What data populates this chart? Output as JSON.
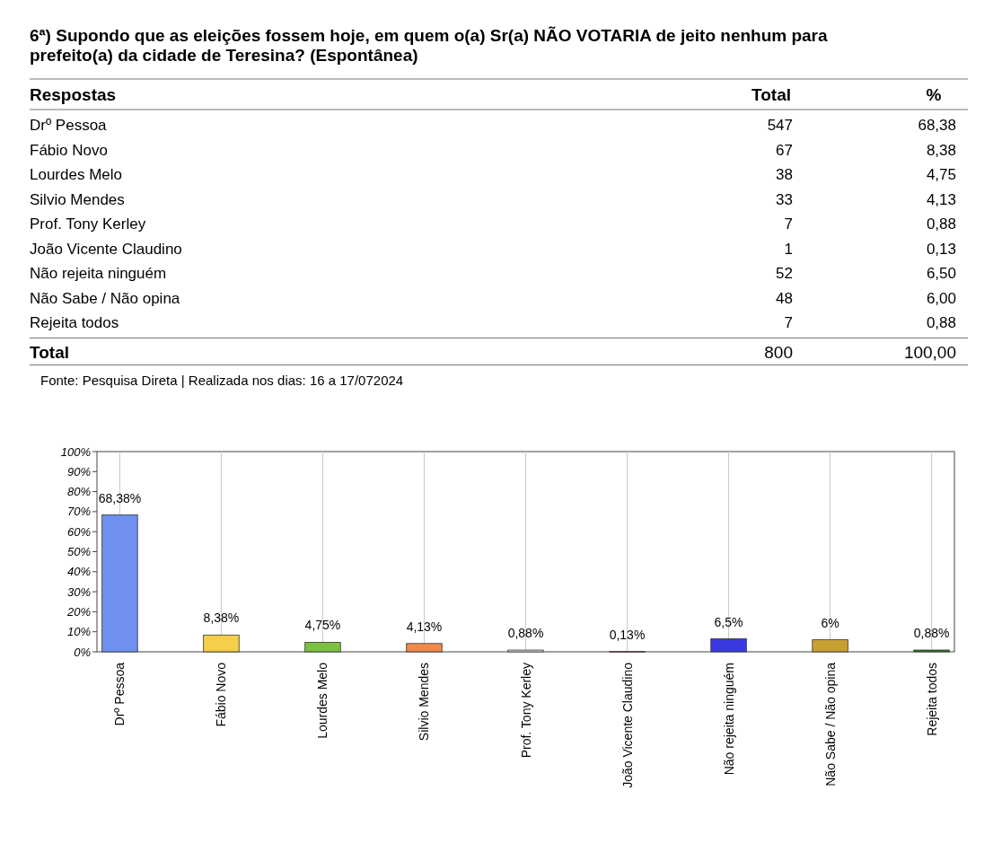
{
  "chart_data": [
    {
      "type": "other",
      "title": "6ª) Supondo que as eleições fossem hoje, em quem o(a) Sr(a) NÃO VOTARIA de jeito nenhum para prefeito(a) da cidade de Teresina? (Espontânea)",
      "xlabel": "Respostas",
      "categories": [
        "Drº Pessoa",
        "Fábio Novo",
        "Lourdes Melo",
        "Silvio Mendes",
        "Prof. Tony Kerley",
        "João Vicente Claudino",
        "Não rejeita ninguém",
        "Não Sabe / Não opina",
        "Rejeita todos",
        "Total"
      ],
      "series": [
        {
          "name": "Total",
          "values": [
            547,
            67,
            38,
            33,
            7,
            1,
            52,
            48,
            7,
            800
          ],
          "value_labels": [
            "547",
            "67",
            "38",
            "33",
            "7",
            "1",
            "52",
            "48",
            "7",
            "800"
          ]
        },
        {
          "name": "%",
          "values": [
            68.38,
            8.38,
            4.75,
            4.13,
            0.88,
            0.13,
            6.5,
            6,
            0.88,
            100
          ],
          "value_labels": [
            "68,38",
            "8,38",
            "4,75",
            "4,13",
            "0,88",
            "0,13",
            "6,50",
            "6,00",
            "0,88",
            "100,00"
          ]
        }
      ],
      "data_labels": true,
      "annotations": [
        "Fonte: Pesquisa Direta | Realizada nos dias: 16 a 17/072024"
      ]
    },
    {
      "type": "bar",
      "categories": [
        "Drº Pessoa",
        "Fábio Novo",
        "Lourdes Melo",
        "Silvio Mendes",
        "Prof. Tony Kerley",
        "João Vicente Claudino",
        "Não rejeita ninguém",
        "Não Sabe / Não opina",
        "Rejeita todos"
      ],
      "values": [
        68.38,
        8.38,
        4.75,
        4.13,
        0.88,
        0.13,
        6.5,
        6,
        0.88
      ],
      "colors": [
        "#7090f0",
        "#f5cf4a",
        "#7cc142",
        "#f08a4b",
        "#dde2ea",
        "#d63a2a",
        "#3a3ae0",
        "#c8a032",
        "#2f7a1f"
      ],
      "value_labels": [
        "68,38%",
        "8,38%",
        "4,75%",
        "4,13%",
        "0,88%",
        "0,13%",
        "6,5%",
        "6%",
        "0,88%"
      ],
      "ylim": [
        0,
        100
      ],
      "yticks": [
        {
          "value": 0,
          "label": "0%"
        },
        {
          "value": 10,
          "label": "10%"
        },
        {
          "value": 20,
          "label": "20%"
        },
        {
          "value": 30,
          "label": "30%"
        },
        {
          "value": 40,
          "label": "40%"
        },
        {
          "value": 50,
          "label": "50%"
        },
        {
          "value": 60,
          "label": "60%"
        },
        {
          "value": 70,
          "label": "70%"
        },
        {
          "value": 80,
          "label": "80%"
        },
        {
          "value": 90,
          "label": "90%"
        },
        {
          "value": 100,
          "label": "100%"
        }
      ],
      "grid": "x"
    }
  ]
}
